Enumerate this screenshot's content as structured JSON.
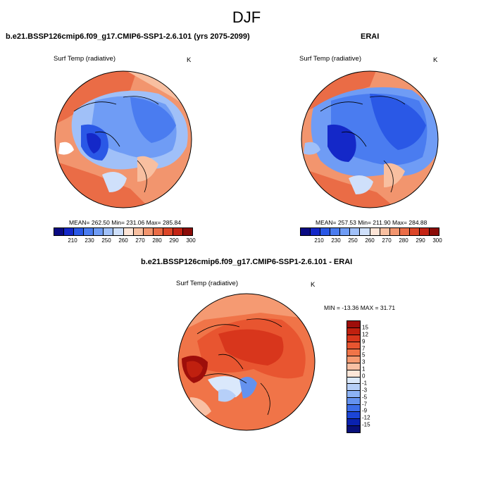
{
  "title": "DJF",
  "panels": [
    {
      "title": "b.e21.BSSP126cmip6.f09_g17.CMIP6-SSP1-2.6.101 (yrs 2075-2099)",
      "variable": "Surf Temp (radiative)",
      "units": "K",
      "stats": "MEAN= 262.50  Min= 231.06  Max= 285.84"
    },
    {
      "title": "ERAI",
      "variable": "Surf Temp (radiative)",
      "units": "K",
      "stats": "MEAN= 257.53  Min= 211.90  Max= 284.88"
    }
  ],
  "diff_panel": {
    "title": "b.e21.BSSP126cmip6.f09_g17.CMIP6-SSP1-2.6.101 - ERAI",
    "variable": "Surf Temp (radiative)",
    "units": "K",
    "stats": "MIN = -13.36 MAX =  31.71"
  },
  "colorbar_abs": {
    "labels": [
      "210",
      "230",
      "250",
      "260",
      "270",
      "280",
      "290",
      "300"
    ],
    "colors": [
      "#0a0a82",
      "#1428c8",
      "#2a58e6",
      "#4a7cf0",
      "#6f9cf5",
      "#a0c0f8",
      "#cfe0fb",
      "#fde4d6",
      "#f8bfa0",
      "#f2956e",
      "#ea6c46",
      "#dc4628",
      "#c42414",
      "#8b0c08"
    ]
  },
  "colorbar_diff": {
    "labels": [
      "15",
      "12",
      "9",
      "7",
      "5",
      "3",
      "1",
      "0",
      "-1",
      "-3",
      "-5",
      "-7",
      "-9",
      "-12",
      "-15"
    ],
    "colors": [
      "#9e0e0a",
      "#c0200f",
      "#d8361c",
      "#e85530",
      "#f07448",
      "#f59a72",
      "#f8c0a4",
      "#fde6d8",
      "#dae8fb",
      "#b6cff8",
      "#8cb2f4",
      "#6492ef",
      "#3c6de8",
      "#1c45d6",
      "#0a22b0",
      "#08107a"
    ]
  },
  "map_colors": {
    "ocean_frame": "#000000",
    "warm": "#e8643c",
    "cold": "#3c6ee6"
  }
}
